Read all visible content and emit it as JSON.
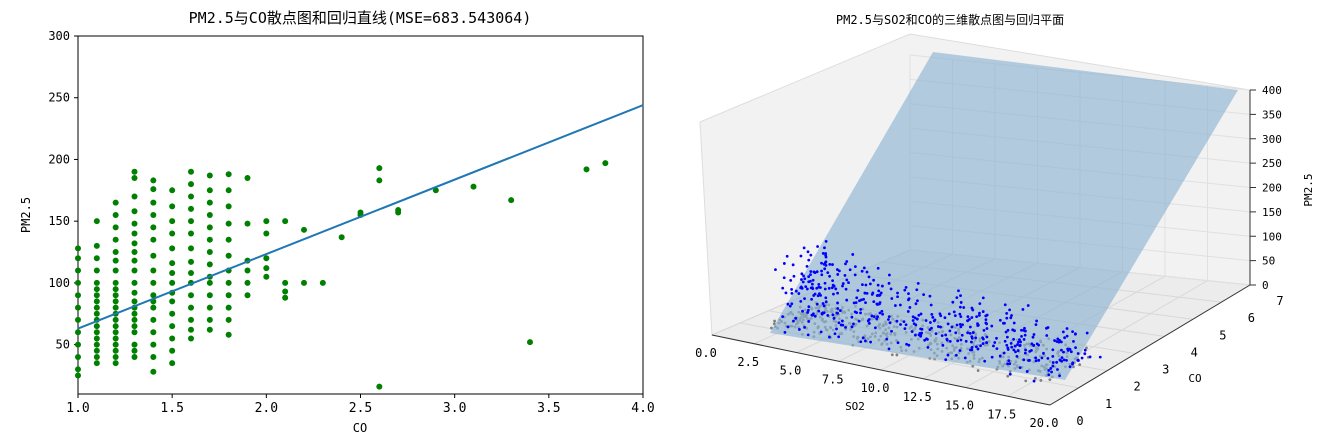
{
  "chart_data": [
    {
      "type": "scatter",
      "title": "PM2.5与CO散点图和回归直线(MSE=683.543064)",
      "xlabel": "CO",
      "ylabel": "PM2.5",
      "xlim": [
        1.0,
        4.0
      ],
      "ylim": [
        10,
        300
      ],
      "xticks": [
        "1.0",
        "1.5",
        "2.0",
        "2.5",
        "3.0",
        "3.5",
        "4.0"
      ],
      "yticks": [
        "50",
        "100",
        "150",
        "200",
        "250",
        "300"
      ],
      "point_color": "#008000",
      "line_color": "#1f77b4",
      "regression_line": {
        "x": [
          1.0,
          4.0
        ],
        "y": [
          63,
          244
        ]
      },
      "points": [
        [
          1.0,
          128
        ],
        [
          1.0,
          120
        ],
        [
          1.0,
          110
        ],
        [
          1.0,
          100
        ],
        [
          1.0,
          90
        ],
        [
          1.0,
          80
        ],
        [
          1.0,
          70
        ],
        [
          1.0,
          60
        ],
        [
          1.0,
          50
        ],
        [
          1.0,
          40
        ],
        [
          1.0,
          30
        ],
        [
          1.0,
          25
        ],
        [
          1.1,
          150
        ],
        [
          1.1,
          130
        ],
        [
          1.1,
          120
        ],
        [
          1.1,
          110
        ],
        [
          1.1,
          100
        ],
        [
          1.1,
          95
        ],
        [
          1.1,
          90
        ],
        [
          1.1,
          85
        ],
        [
          1.1,
          80
        ],
        [
          1.1,
          75
        ],
        [
          1.1,
          70
        ],
        [
          1.1,
          65
        ],
        [
          1.1,
          60
        ],
        [
          1.1,
          55
        ],
        [
          1.1,
          50
        ],
        [
          1.1,
          45
        ],
        [
          1.1,
          40
        ],
        [
          1.1,
          35
        ],
        [
          1.2,
          165
        ],
        [
          1.2,
          155
        ],
        [
          1.2,
          145
        ],
        [
          1.2,
          135
        ],
        [
          1.2,
          125
        ],
        [
          1.2,
          118
        ],
        [
          1.2,
          110
        ],
        [
          1.2,
          100
        ],
        [
          1.2,
          95
        ],
        [
          1.2,
          90
        ],
        [
          1.2,
          85
        ],
        [
          1.2,
          80
        ],
        [
          1.2,
          75
        ],
        [
          1.2,
          70
        ],
        [
          1.2,
          65
        ],
        [
          1.2,
          60
        ],
        [
          1.2,
          55
        ],
        [
          1.2,
          50
        ],
        [
          1.2,
          45
        ],
        [
          1.2,
          40
        ],
        [
          1.2,
          35
        ],
        [
          1.3,
          190
        ],
        [
          1.3,
          185
        ],
        [
          1.3,
          170
        ],
        [
          1.3,
          158
        ],
        [
          1.3,
          148
        ],
        [
          1.3,
          140
        ],
        [
          1.3,
          132
        ],
        [
          1.3,
          125
        ],
        [
          1.3,
          118
        ],
        [
          1.3,
          110
        ],
        [
          1.3,
          100
        ],
        [
          1.3,
          92
        ],
        [
          1.3,
          85
        ],
        [
          1.3,
          80
        ],
        [
          1.3,
          75
        ],
        [
          1.3,
          70
        ],
        [
          1.3,
          65
        ],
        [
          1.3,
          60
        ],
        [
          1.3,
          50
        ],
        [
          1.3,
          45
        ],
        [
          1.3,
          40
        ],
        [
          1.4,
          183
        ],
        [
          1.4,
          176
        ],
        [
          1.4,
          165
        ],
        [
          1.4,
          155
        ],
        [
          1.4,
          145
        ],
        [
          1.4,
          135
        ],
        [
          1.4,
          122
        ],
        [
          1.4,
          110
        ],
        [
          1.4,
          100
        ],
        [
          1.4,
          90
        ],
        [
          1.4,
          85
        ],
        [
          1.4,
          80
        ],
        [
          1.4,
          70
        ],
        [
          1.4,
          60
        ],
        [
          1.4,
          50
        ],
        [
          1.4,
          40
        ],
        [
          1.4,
          28
        ],
        [
          1.5,
          175
        ],
        [
          1.5,
          162
        ],
        [
          1.5,
          150
        ],
        [
          1.5,
          140
        ],
        [
          1.5,
          128
        ],
        [
          1.5,
          116
        ],
        [
          1.5,
          108
        ],
        [
          1.5,
          100
        ],
        [
          1.5,
          92
        ],
        [
          1.5,
          85
        ],
        [
          1.5,
          75
        ],
        [
          1.5,
          65
        ],
        [
          1.5,
          55
        ],
        [
          1.5,
          45
        ],
        [
          1.5,
          35
        ],
        [
          1.6,
          190
        ],
        [
          1.6,
          180
        ],
        [
          1.6,
          170
        ],
        [
          1.6,
          160
        ],
        [
          1.6,
          150
        ],
        [
          1.6,
          140
        ],
        [
          1.6,
          128
        ],
        [
          1.6,
          117
        ],
        [
          1.6,
          108
        ],
        [
          1.6,
          100
        ],
        [
          1.6,
          90
        ],
        [
          1.6,
          80
        ],
        [
          1.6,
          70
        ],
        [
          1.6,
          62
        ],
        [
          1.6,
          55
        ],
        [
          1.7,
          187
        ],
        [
          1.7,
          175
        ],
        [
          1.7,
          165
        ],
        [
          1.7,
          155
        ],
        [
          1.7,
          145
        ],
        [
          1.7,
          135
        ],
        [
          1.7,
          125
        ],
        [
          1.7,
          115
        ],
        [
          1.7,
          105
        ],
        [
          1.7,
          100
        ],
        [
          1.7,
          90
        ],
        [
          1.7,
          80
        ],
        [
          1.7,
          70
        ],
        [
          1.7,
          62
        ],
        [
          1.8,
          188
        ],
        [
          1.8,
          175
        ],
        [
          1.8,
          162
        ],
        [
          1.8,
          148
        ],
        [
          1.8,
          135
        ],
        [
          1.8,
          122
        ],
        [
          1.8,
          110
        ],
        [
          1.8,
          100
        ],
        [
          1.8,
          90
        ],
        [
          1.8,
          80
        ],
        [
          1.8,
          70
        ],
        [
          1.8,
          58
        ],
        [
          1.9,
          185
        ],
        [
          1.9,
          148
        ],
        [
          1.9,
          118
        ],
        [
          1.9,
          110
        ],
        [
          1.9,
          100
        ],
        [
          1.9,
          90
        ],
        [
          2.0,
          150
        ],
        [
          2.0,
          140
        ],
        [
          2.0,
          120
        ],
        [
          2.0,
          112
        ],
        [
          2.0,
          105
        ],
        [
          2.1,
          150
        ],
        [
          2.1,
          100
        ],
        [
          2.1,
          93
        ],
        [
          2.1,
          88
        ],
        [
          2.2,
          143
        ],
        [
          2.2,
          100
        ],
        [
          2.3,
          100
        ],
        [
          2.4,
          137
        ],
        [
          2.5,
          157
        ],
        [
          2.5,
          155
        ],
        [
          2.6,
          193
        ],
        [
          2.6,
          183
        ],
        [
          2.6,
          16
        ],
        [
          2.7,
          157
        ],
        [
          2.7,
          159
        ],
        [
          2.9,
          175
        ],
        [
          3.1,
          178
        ],
        [
          3.3,
          167
        ],
        [
          3.4,
          52
        ],
        [
          3.7,
          192
        ],
        [
          3.8,
          197
        ]
      ]
    },
    {
      "type": "scatter3d",
      "title": "PM2.5与SO2和CO的三维散点图与回归平面",
      "xlabel": "SO2",
      "ylabel": "CO",
      "zlabel": "PM2.5",
      "xlim": [
        0,
        20
      ],
      "ylim": [
        0,
        7
      ],
      "zlim": [
        0,
        400
      ],
      "xticks": [
        "0.0",
        "2.5",
        "5.0",
        "7.5",
        "10.0",
        "12.5",
        "15.0",
        "17.5",
        "20.0"
      ],
      "yticks": [
        "0",
        "1",
        "2",
        "3",
        "4",
        "5",
        "6",
        "7"
      ],
      "zticks": [
        "0",
        "50",
        "100",
        "150",
        "200",
        "250",
        "300",
        "350",
        "400"
      ],
      "point_colors": [
        "#0000ff",
        "#808080"
      ],
      "plane_color": "#a9c4dc"
    }
  ]
}
